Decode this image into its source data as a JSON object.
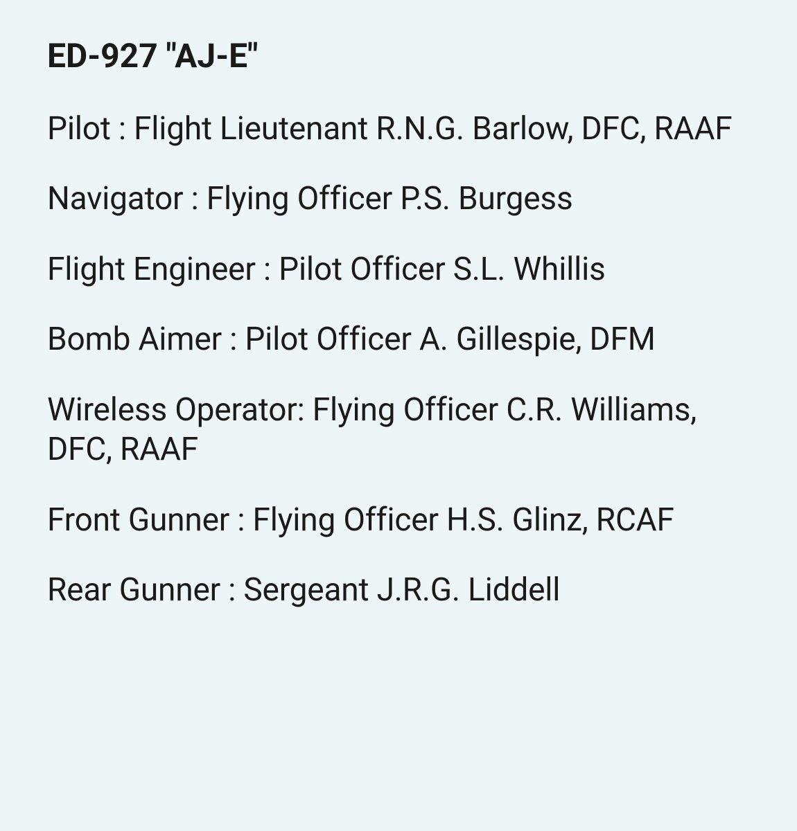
{
  "title": "ED-927 \"AJ-E\"",
  "crew": [
    "Pilot : Flight Lieutenant R.N.G. Barlow, DFC, RAAF",
    "Navigator : Flying Officer P.S. Burgess",
    "Flight Engineer : Pilot Officer S.L. Whillis",
    "Bomb Aimer : Pilot Officer A. Gillespie, DFM",
    "Wireless Operator: Flying Officer C.R. Williams, DFC, RAAF",
    "Front Gunner : Flying Officer H.S. Glinz, RCAF",
    "Rear Gunner : Sergeant J.R.G. Liddell"
  ],
  "colors": {
    "background": "#eef5f7",
    "text": "#1a1a1a"
  },
  "typography": {
    "title_fontsize": 48,
    "title_weight": 700,
    "body_fontsize": 46,
    "body_weight": 400
  }
}
